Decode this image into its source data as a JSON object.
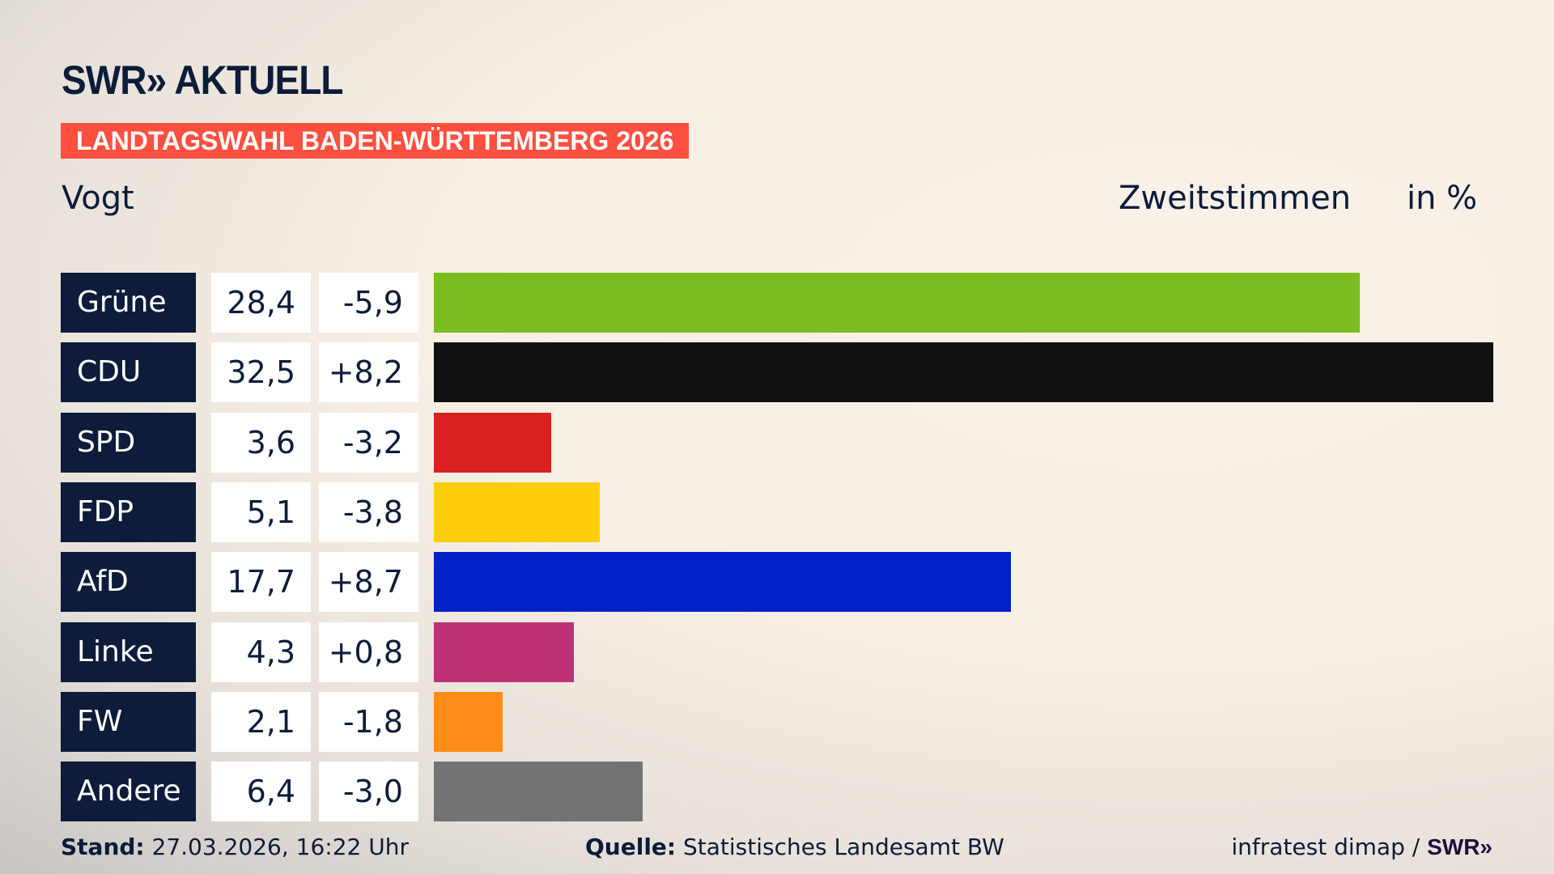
{
  "header": {
    "logo": "SWR» AKTUELL",
    "banner": "LANDTAGSWAHL BADEN-WÜRTTEMBERG 2026",
    "subtitle": "Vogt",
    "measure": "Zweitstimmen",
    "unit": "in %"
  },
  "chart_data": {
    "type": "bar",
    "orientation": "horizontal",
    "categories": [
      "Grüne",
      "CDU",
      "SPD",
      "FDP",
      "AfD",
      "Linke",
      "FW",
      "Andere"
    ],
    "values": [
      28.4,
      32.5,
      3.6,
      5.1,
      17.7,
      4.3,
      2.1,
      6.4
    ],
    "value_labels": [
      "28,4",
      "32,5",
      "3,6",
      "5,1",
      "17,7",
      "4,3",
      "2,1",
      "6,4"
    ],
    "diff_labels": [
      "-5,9",
      "+8,2",
      "-3,2",
      "-3,8",
      "+8,7",
      "+0,8",
      "-1,8",
      "-3,0"
    ],
    "colors": [
      "#7bbd1e",
      "#111111",
      "#d9211f",
      "#fecd0b",
      "#0020c8",
      "#bc3275",
      "#ff8c19",
      "#727374"
    ],
    "title": "Zweitstimmen",
    "unit": "in %"
  },
  "footer": {
    "stand_label": "Stand:",
    "stand_value": " 27.03.2026, 16:22 Uhr",
    "source_label": "Quelle:",
    "source_value": " Statistisches Landesamt BW",
    "credit": "infratest dimap / ",
    "credit_logo": "SWR»"
  }
}
